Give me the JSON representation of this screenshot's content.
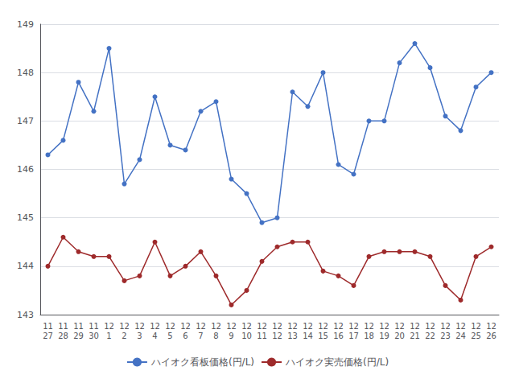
{
  "chart_data": {
    "type": "line",
    "categories": [
      "11\n27",
      "11\n28",
      "11\n29",
      "11\n30",
      "12\n1",
      "12\n2",
      "12\n3",
      "12\n4",
      "12\n5",
      "12\n6",
      "12\n7",
      "12\n8",
      "12\n9",
      "12\n10",
      "12\n11",
      "12\n12",
      "12\n13",
      "12\n14",
      "12\n15",
      "12\n16",
      "12\n17",
      "12\n18",
      "12\n19",
      "12\n20",
      "12\n21",
      "12\n22",
      "12\n23",
      "12\n24",
      "12\n25",
      "12\n26"
    ],
    "series": [
      {
        "name": "ハイオク看板価格(円/L)",
        "color": "#4472C4",
        "marker": "circle",
        "values": [
          146.3,
          146.6,
          147.8,
          147.2,
          148.5,
          145.7,
          146.2,
          147.5,
          146.5,
          146.4,
          147.2,
          147.4,
          145.8,
          145.5,
          144.9,
          145.0,
          147.6,
          147.3,
          148.0,
          146.1,
          145.9,
          147.0,
          147.0,
          148.2,
          148.6,
          148.1,
          147.1,
          146.8,
          147.7,
          148.0
        ]
      },
      {
        "name": "ハイオク実売価格(円/L)",
        "color": "#9E2A2B",
        "marker": "circle",
        "values": [
          144.0,
          144.6,
          144.3,
          144.2,
          144.2,
          143.7,
          143.8,
          144.5,
          143.8,
          144.0,
          144.3,
          143.8,
          143.2,
          143.5,
          144.1,
          144.4,
          144.5,
          144.5,
          143.9,
          143.8,
          143.6,
          144.2,
          144.3,
          144.3,
          144.3,
          144.2,
          143.6,
          143.3,
          144.2,
          144.4
        ]
      }
    ],
    "ylim": [
      143,
      149
    ],
    "yticks": [
      143,
      144,
      145,
      146,
      147,
      148,
      149
    ],
    "grid": true,
    "legend": "bottom"
  }
}
